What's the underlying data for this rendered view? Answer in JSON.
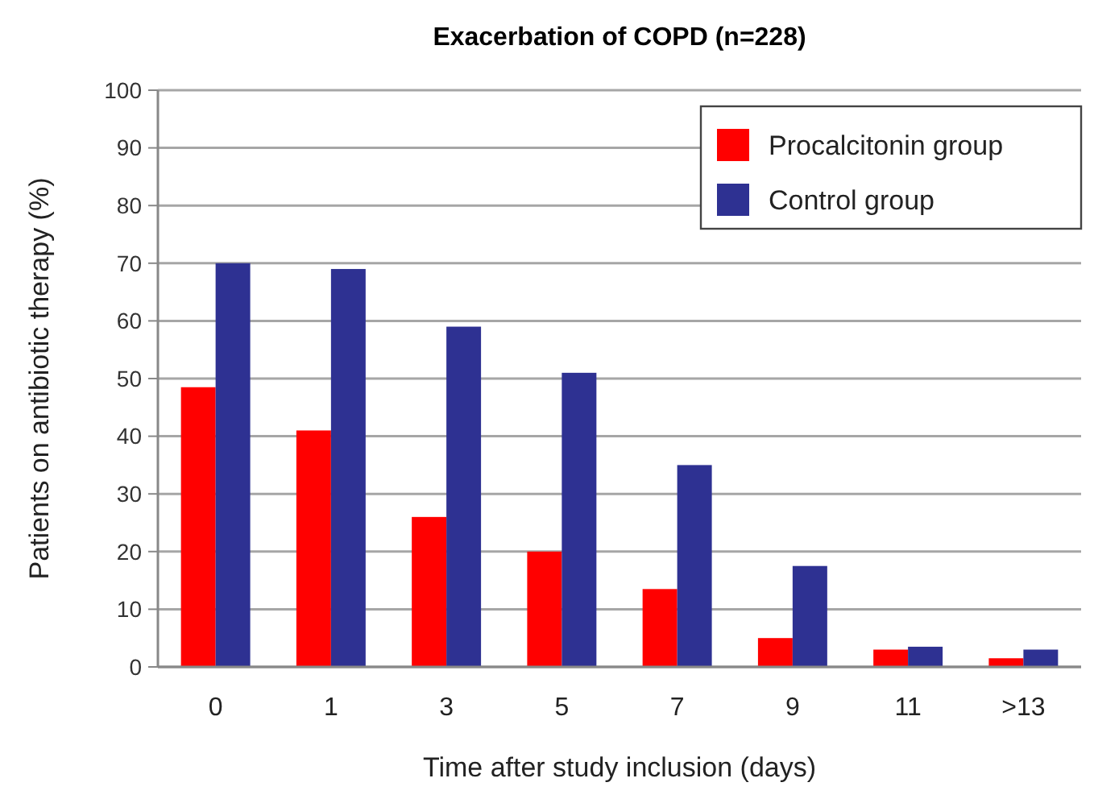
{
  "chart_data": {
    "type": "bar",
    "title": "Exacerbation of COPD (n=228)",
    "xlabel": "Time after study inclusion (days)",
    "ylabel": "Patients on antibiotic therapy (%)",
    "categories": [
      "0",
      "1",
      "3",
      "5",
      "7",
      "9",
      "11",
      ">13"
    ],
    "series": [
      {
        "name": "Procalcitonin group",
        "color": "#ff0000",
        "values": [
          48.5,
          41,
          26,
          20,
          13.5,
          5,
          3,
          1.5
        ]
      },
      {
        "name": "Control group",
        "color": "#2e3192",
        "values": [
          70,
          69,
          59,
          51,
          35,
          17.5,
          3.5,
          3
        ]
      }
    ],
    "ylim": [
      0,
      100
    ],
    "yticks": [
      0,
      10,
      20,
      30,
      40,
      50,
      60,
      70,
      80,
      90,
      100
    ],
    "grid": "y",
    "legend": "top right"
  }
}
